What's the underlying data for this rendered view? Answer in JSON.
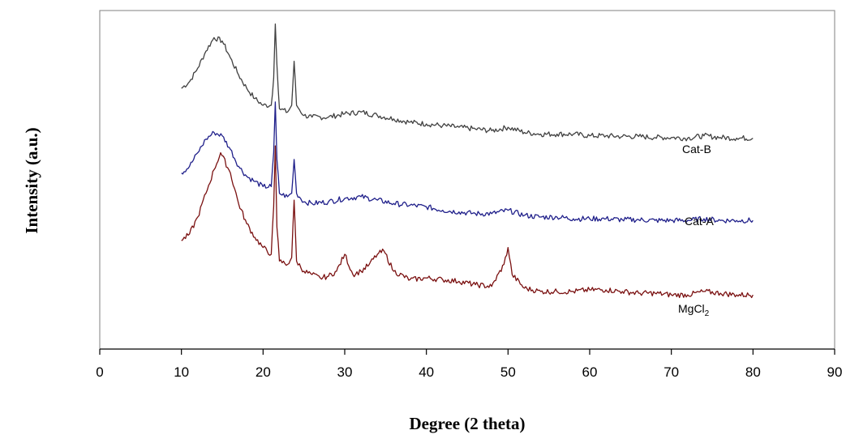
{
  "chart_data": {
    "type": "line",
    "xlabel": "Degree (2 theta)",
    "ylabel": "Intensity (a.u.)",
    "xlim": [
      0,
      90
    ],
    "x_ticks": [
      "0",
      "10",
      "20",
      "30",
      "40",
      "50",
      "60",
      "70",
      "80",
      "90"
    ],
    "ylim": [
      0,
      100
    ],
    "y_ticks": [],
    "grid": false,
    "legend": "none",
    "series": [
      {
        "name": "Cat-B",
        "label_main": "Cat-B",
        "label_sub": "",
        "color": "#404040",
        "x": [
          10,
          11,
          12,
          13,
          14,
          15,
          16,
          17,
          18,
          19,
          20,
          21,
          21.3,
          21.5,
          21.7,
          22,
          23,
          23.5,
          23.8,
          24.1,
          25,
          26,
          28,
          30,
          32,
          34,
          36,
          38,
          40,
          42,
          44,
          46,
          48,
          50,
          52,
          54,
          56,
          58,
          60,
          62,
          64,
          66,
          68,
          70,
          72,
          74,
          76,
          78,
          80
        ],
        "y": [
          77,
          79,
          83,
          88,
          92,
          91,
          86,
          81,
          77,
          74,
          72,
          72,
          80,
          96,
          84,
          71,
          70,
          72,
          85,
          72,
          69,
          68.5,
          68.5,
          69.5,
          70,
          69,
          68,
          67,
          66.5,
          66,
          65.5,
          65,
          64.5,
          65.5,
          64,
          63.5,
          63.5,
          63.5,
          63,
          63,
          62.8,
          62.8,
          62.5,
          62.5,
          62.3,
          63,
          62.5,
          62.3,
          62.3
        ]
      },
      {
        "name": "Cat-A",
        "label_main": "Cat-A",
        "label_sub": "",
        "color": "#1f1f8a",
        "x": [
          10,
          11,
          12,
          13,
          14,
          15,
          16,
          17,
          18,
          19,
          20,
          21,
          21.3,
          21.5,
          21.7,
          22,
          23,
          23.5,
          23.8,
          24.1,
          25,
          26,
          28,
          30,
          32,
          34,
          36,
          38,
          40,
          42,
          44,
          46,
          48,
          50,
          52,
          54,
          56,
          58,
          60,
          62,
          64,
          66,
          68,
          70,
          72,
          74,
          76,
          78,
          80
        ],
        "y": [
          52,
          54,
          58,
          62,
          64,
          63,
          59,
          54,
          51,
          49.5,
          48,
          48,
          58,
          73,
          56,
          46,
          45,
          46,
          56,
          46,
          43.5,
          43,
          43.5,
          44.5,
          45,
          44,
          43,
          42.5,
          42,
          41,
          40.5,
          40,
          40,
          41,
          39.5,
          39,
          39,
          38.5,
          38.5,
          38.5,
          38.2,
          38.2,
          38,
          38,
          38,
          38.5,
          38,
          38,
          38
        ]
      },
      {
        "name": "MgCl2",
        "label_main": "MgCl",
        "label_sub": "2",
        "color": "#7a1010",
        "x": [
          10,
          11,
          12,
          13,
          14,
          14.8,
          16,
          17,
          18,
          19,
          20,
          21,
          21.3,
          21.5,
          21.7,
          22,
          23,
          23.5,
          23.8,
          24.1,
          25,
          26,
          27,
          28,
          29,
          30,
          31,
          32,
          33,
          34,
          34.8,
          36,
          38,
          40,
          42,
          44,
          46,
          48,
          49.5,
          50,
          50.5,
          52,
          54,
          56,
          58,
          60,
          62,
          64,
          66,
          68,
          70,
          72,
          74,
          76,
          78,
          80
        ],
        "y": [
          32,
          34,
          39,
          46,
          53,
          58,
          52,
          43,
          37,
          33,
          30,
          28,
          42,
          60,
          36,
          26,
          25,
          27,
          44,
          26,
          23,
          22,
          21,
          21.5,
          23,
          28,
          22,
          23,
          25,
          28,
          29,
          23,
          20.5,
          21,
          20.5,
          20,
          19,
          18.5,
          25,
          30,
          22,
          18,
          17,
          17,
          17,
          17.5,
          17.5,
          17,
          16.5,
          16.5,
          16,
          16,
          17,
          16.5,
          16,
          16
        ]
      }
    ]
  }
}
